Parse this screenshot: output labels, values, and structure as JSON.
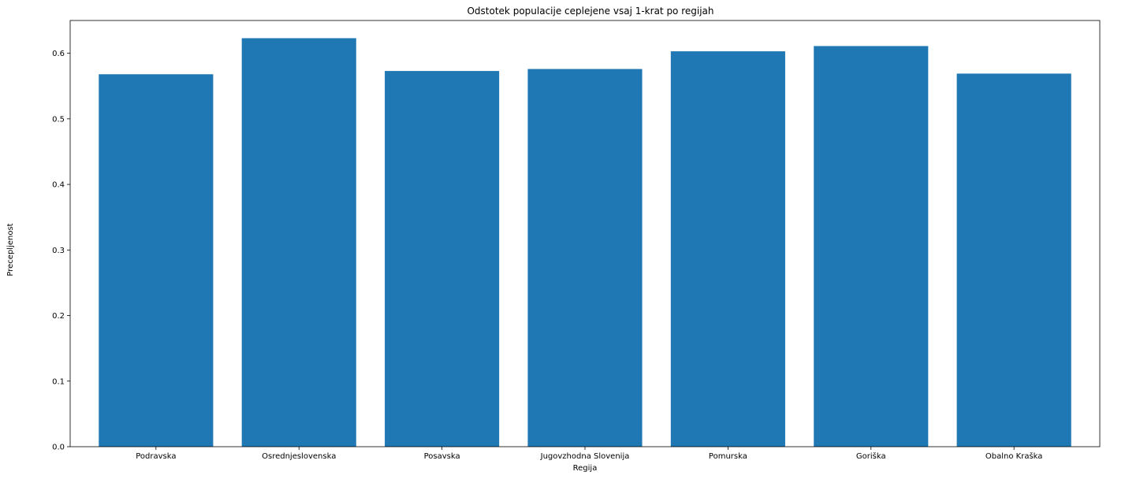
{
  "chart_data": {
    "type": "bar",
    "title": "Odstotek populacije ceplejene vsaj 1-krat po regijah",
    "xlabel": "Regija",
    "ylabel": "Precepljenost",
    "categories": [
      "Podravska",
      "Osrednjeslovenska",
      "Posavska",
      "Jugovzhodna Slovenija",
      "Pomurska",
      "Goriška",
      "Obalno Kraška"
    ],
    "values": [
      0.568,
      0.623,
      0.573,
      0.576,
      0.603,
      0.611,
      0.569
    ],
    "ylim": [
      0,
      0.65
    ],
    "yticks": [
      0.0,
      0.1,
      0.2,
      0.3,
      0.4,
      0.5,
      0.6
    ],
    "ytick_labels": [
      "0.0",
      "0.1",
      "0.2",
      "0.3",
      "0.4",
      "0.5",
      "0.6"
    ],
    "bar_color": "#1f77b4",
    "grid": false,
    "legend": "none"
  }
}
